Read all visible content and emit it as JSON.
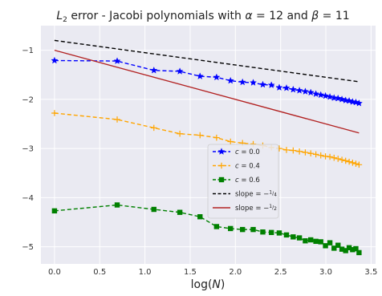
{
  "chart_data": {
    "type": "line",
    "title": "L₂ error - Jacobi polynomials with α = 12 and β = 11",
    "title_parts": {
      "l_prefix": "L",
      "l_sub": "2",
      "mid": " error - Jacobi polynomials with ",
      "alpha": "α",
      "alpha_eq": " = 12 and ",
      "beta": "β",
      "beta_eq": " = 11"
    },
    "xlabel": "log(N)",
    "xlabel_parts": {
      "pre": "log(",
      "var": "N",
      "post": ")"
    },
    "ylabel": "",
    "xlim": [
      -0.15,
      3.55
    ],
    "ylim": [
      -5.35,
      -0.5
    ],
    "xticks": [
      0.0,
      0.5,
      1.0,
      1.5,
      2.0,
      2.5,
      3.0,
      3.5
    ],
    "xtick_labels": [
      "0.0",
      "0.5",
      "1.0",
      "1.5",
      "2.0",
      "2.5",
      "3.0",
      "3.5"
    ],
    "yticks": [
      -5,
      -4,
      -3,
      -2,
      -1
    ],
    "ytick_labels": [
      "−5",
      "−4",
      "−3",
      "−2",
      "−1"
    ],
    "grid": true,
    "background": "#eaeaf2",
    "legend_position": "center-right",
    "x": [
      0.0,
      0.693,
      1.099,
      1.386,
      1.609,
      1.792,
      1.946,
      2.079,
      2.197,
      2.303,
      2.398,
      2.485,
      2.565,
      2.639,
      2.708,
      2.773,
      2.833,
      2.89,
      2.944,
      2.996,
      3.045,
      3.091,
      3.135,
      3.178,
      3.219,
      3.258,
      3.296,
      3.332,
      3.367
    ],
    "series": [
      {
        "name": "c = 0.0",
        "label_var": "c",
        "label_rest": " = 0.0",
        "color": "#0000ff",
        "marker": "star",
        "line_style": "dashed",
        "values": [
          -1.21,
          -1.22,
          -1.41,
          -1.43,
          -1.53,
          -1.55,
          -1.62,
          -1.65,
          -1.66,
          -1.7,
          -1.71,
          -1.76,
          -1.77,
          -1.8,
          -1.82,
          -1.84,
          -1.86,
          -1.89,
          -1.91,
          -1.93,
          -1.95,
          -1.97,
          -1.98,
          -2.0,
          -2.02,
          -2.03,
          -2.05,
          -2.06,
          -2.08
        ]
      },
      {
        "name": "c = 0.4",
        "label_var": "c",
        "label_rest": " = 0.4",
        "color": "#ffa500",
        "marker": "plus",
        "line_style": "dashed",
        "values": [
          -2.28,
          -2.41,
          -2.58,
          -2.7,
          -2.73,
          -2.78,
          -2.86,
          -2.89,
          -2.91,
          -2.94,
          -2.98,
          -3.0,
          -3.03,
          -3.04,
          -3.06,
          -3.08,
          -3.1,
          -3.12,
          -3.14,
          -3.16,
          -3.17,
          -3.19,
          -3.21,
          -3.23,
          -3.25,
          -3.27,
          -3.29,
          -3.31,
          -3.33
        ]
      },
      {
        "name": "c = 0.6",
        "label_var": "c",
        "label_rest": " = 0.6",
        "color": "#008000",
        "marker": "square",
        "line_style": "dashed",
        "values": [
          -4.27,
          -4.15,
          -4.24,
          -4.3,
          -4.39,
          -4.59,
          -4.63,
          -4.65,
          -4.65,
          -4.7,
          -4.71,
          -4.72,
          -4.76,
          -4.8,
          -4.82,
          -4.88,
          -4.86,
          -4.89,
          -4.9,
          -4.98,
          -4.92,
          -5.03,
          -4.97,
          -5.05,
          -5.08,
          -5.02,
          -5.06,
          -5.04,
          -5.12
        ]
      },
      {
        "name": "slope = −1/4",
        "label_prefix": "slope = −",
        "label_num": "1",
        "label_den": "4",
        "color": "#000000",
        "line_style": "dashed",
        "x": [
          0.0,
          3.367
        ],
        "values": [
          -0.8,
          -1.642
        ]
      },
      {
        "name": "slope = −1/2",
        "label_prefix": "slope = −",
        "label_num": "1",
        "label_den": "2",
        "color": "#b22222",
        "line_style": "solid",
        "x": [
          0.0,
          3.367
        ],
        "values": [
          -1.0,
          -2.684
        ]
      }
    ]
  }
}
